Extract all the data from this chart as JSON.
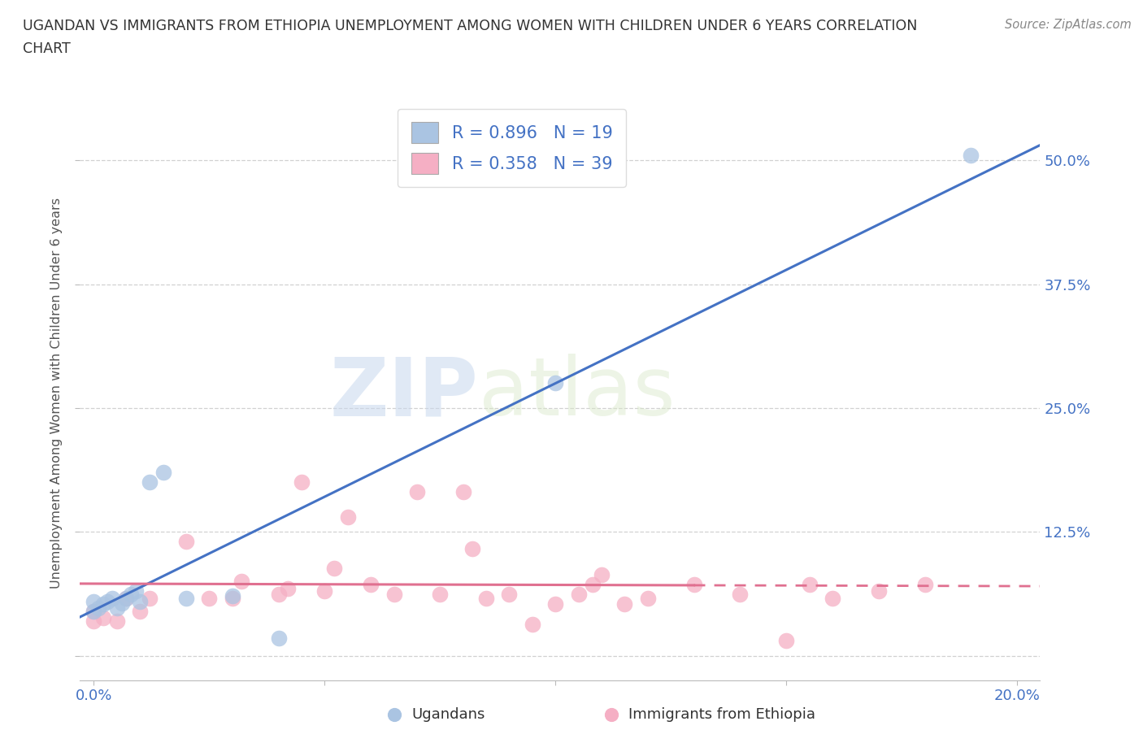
{
  "title_line1": "UGANDAN VS IMMIGRANTS FROM ETHIOPIA UNEMPLOYMENT AMONG WOMEN WITH CHILDREN UNDER 6 YEARS CORRELATION",
  "title_line2": "CHART",
  "source": "Source: ZipAtlas.com",
  "ylabel": "Unemployment Among Women with Children Under 6 years",
  "ugandan_color": "#aac4e2",
  "ethiopia_color": "#f5afc4",
  "ugandan_line_color": "#4472c4",
  "ethiopia_line_color": "#e07090",
  "legend_label_1": "Ugandans",
  "legend_label_2": "Immigrants from Ethiopia",
  "R1": 0.896,
  "N1": 19,
  "R2": 0.358,
  "N2": 39,
  "watermark_zip": "ZIP",
  "watermark_atlas": "atlas",
  "xlim": [
    -0.003,
    0.205
  ],
  "ylim": [
    -0.025,
    0.555
  ],
  "xticks": [
    0.0,
    0.05,
    0.1,
    0.15,
    0.2
  ],
  "xticklabels": [
    "0.0%",
    "",
    "",
    "",
    "20.0%"
  ],
  "yticks": [
    0.0,
    0.125,
    0.25,
    0.375,
    0.5
  ],
  "yticklabels": [
    "",
    "12.5%",
    "25.0%",
    "37.5%",
    "50.0%"
  ],
  "ugandan_x": [
    0.0,
    0.0,
    0.001,
    0.002,
    0.003,
    0.004,
    0.005,
    0.006,
    0.007,
    0.008,
    0.009,
    0.01,
    0.012,
    0.015,
    0.02,
    0.03,
    0.04,
    0.1,
    0.19
  ],
  "ugandan_y": [
    0.045,
    0.055,
    0.048,
    0.052,
    0.055,
    0.058,
    0.048,
    0.053,
    0.058,
    0.062,
    0.065,
    0.055,
    0.175,
    0.185,
    0.058,
    0.06,
    0.018,
    0.275,
    0.505
  ],
  "ethiopia_x": [
    0.0,
    0.0,
    0.002,
    0.005,
    0.007,
    0.01,
    0.012,
    0.02,
    0.025,
    0.03,
    0.032,
    0.04,
    0.042,
    0.045,
    0.05,
    0.052,
    0.055,
    0.06,
    0.065,
    0.07,
    0.075,
    0.08,
    0.082,
    0.085,
    0.09,
    0.095,
    0.1,
    0.105,
    0.108,
    0.11,
    0.115,
    0.12,
    0.13,
    0.14,
    0.15,
    0.155,
    0.16,
    0.17,
    0.18
  ],
  "ethiopia_y": [
    0.035,
    0.045,
    0.038,
    0.035,
    0.058,
    0.045,
    0.058,
    0.115,
    0.058,
    0.058,
    0.075,
    0.062,
    0.068,
    0.175,
    0.065,
    0.088,
    0.14,
    0.072,
    0.062,
    0.165,
    0.062,
    0.165,
    0.108,
    0.058,
    0.062,
    0.032,
    0.052,
    0.062,
    0.072,
    0.082,
    0.052,
    0.058,
    0.072,
    0.062,
    0.015,
    0.072,
    0.058,
    0.065,
    0.072
  ]
}
